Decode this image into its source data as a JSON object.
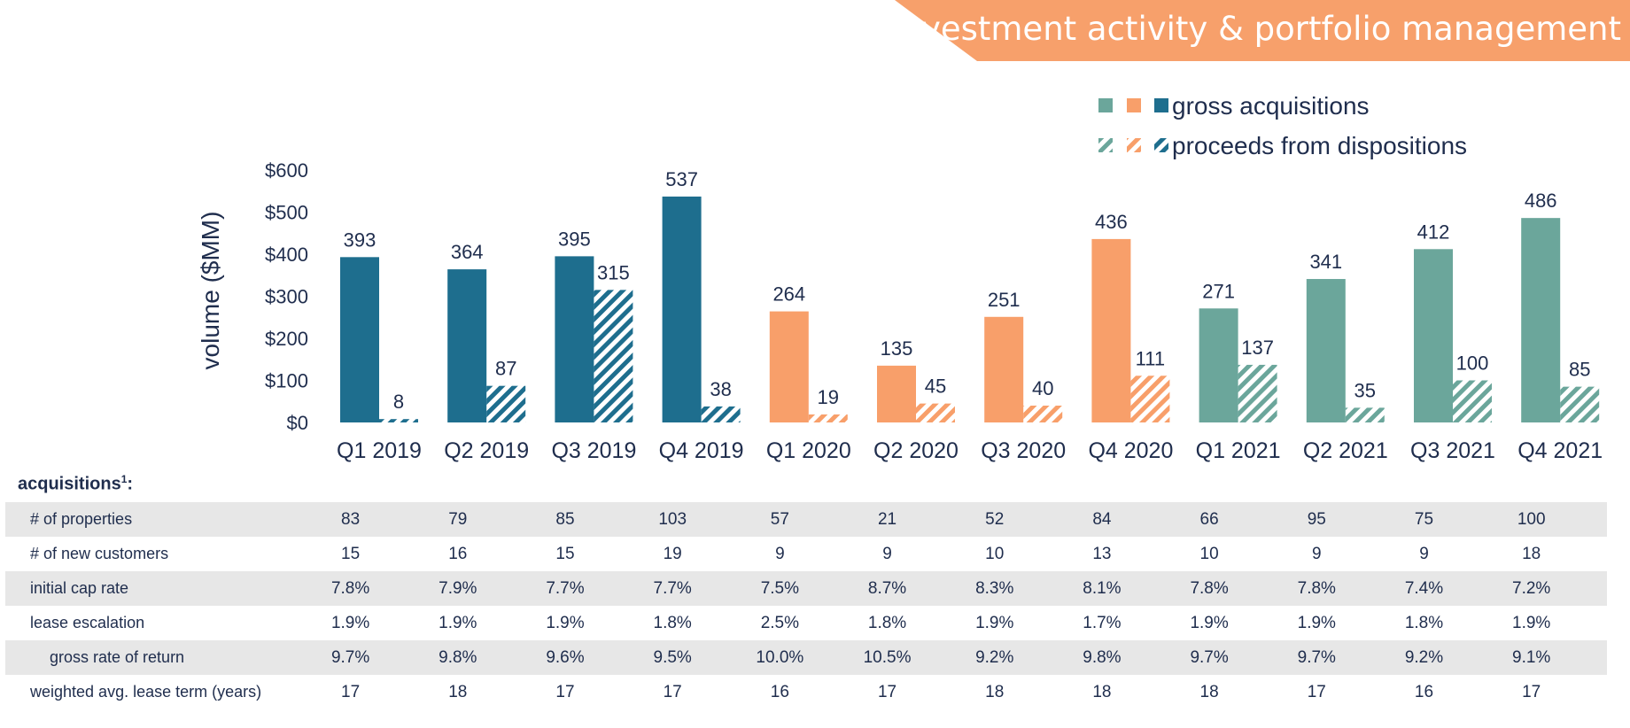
{
  "header": {
    "title": "investment activity & portfolio management"
  },
  "colors": {
    "banner": "#f7a06b",
    "series_2019": "#1e6e8e",
    "series_2020": "#f89f6a",
    "series_2021": "#6ba69b"
  },
  "legend": {
    "gross_label": "gross acquisitions",
    "dispositions_label": "proceeds from dispositions",
    "placement": "top-right"
  },
  "chart_data": {
    "type": "bar",
    "categories": [
      "Q1 2019",
      "Q2 2019",
      "Q3 2019",
      "Q4 2019",
      "Q1 2020",
      "Q2 2020",
      "Q3 2020",
      "Q4 2020",
      "Q1 2021",
      "Q2 2021",
      "Q3 2021",
      "Q4 2021"
    ],
    "series": [
      {
        "name": "gross acquisitions",
        "style": "solid",
        "values": [
          393,
          364,
          395,
          537,
          264,
          135,
          251,
          436,
          271,
          341,
          412,
          486
        ]
      },
      {
        "name": "proceeds from dispositions",
        "style": "hatched",
        "values": [
          8,
          87,
          315,
          38,
          19,
          45,
          40,
          111,
          137,
          35,
          100,
          85
        ]
      }
    ],
    "ylabel": "volume ($MM)",
    "ylim": [
      0,
      600
    ],
    "yticks": [
      "$0",
      "$100",
      "$200",
      "$300",
      "$400",
      "$500",
      "$600"
    ],
    "grid": false
  },
  "table": {
    "title": "acquisitions",
    "title_sup": "1",
    "title_suffix": ":",
    "rows": [
      {
        "label": "# of properties",
        "indent": false,
        "values": [
          "83",
          "79",
          "85",
          "103",
          "57",
          "21",
          "52",
          "84",
          "66",
          "95",
          "75",
          "100"
        ]
      },
      {
        "label": "# of new customers",
        "indent": false,
        "values": [
          "15",
          "16",
          "15",
          "19",
          "9",
          "9",
          "10",
          "13",
          "10",
          "9",
          "9",
          "18"
        ]
      },
      {
        "label": "initial cap rate",
        "indent": false,
        "values": [
          "7.8%",
          "7.9%",
          "7.7%",
          "7.7%",
          "7.5%",
          "8.7%",
          "8.3%",
          "8.1%",
          "7.8%",
          "7.8%",
          "7.4%",
          "7.2%"
        ]
      },
      {
        "label": "lease escalation",
        "indent": false,
        "values": [
          "1.9%",
          "1.9%",
          "1.9%",
          "1.8%",
          "2.5%",
          "1.8%",
          "1.9%",
          "1.7%",
          "1.9%",
          "1.9%",
          "1.8%",
          "1.9%"
        ]
      },
      {
        "label": "gross rate of return",
        "indent": true,
        "values": [
          "9.7%",
          "9.8%",
          "9.6%",
          "9.5%",
          "10.0%",
          "10.5%",
          "9.2%",
          "9.8%",
          "9.7%",
          "9.7%",
          "9.2%",
          "9.1%"
        ]
      },
      {
        "label": "weighted avg. lease term (years)",
        "indent": false,
        "values": [
          "17",
          "18",
          "17",
          "17",
          "16",
          "17",
          "18",
          "18",
          "18",
          "17",
          "16",
          "17"
        ]
      }
    ]
  }
}
